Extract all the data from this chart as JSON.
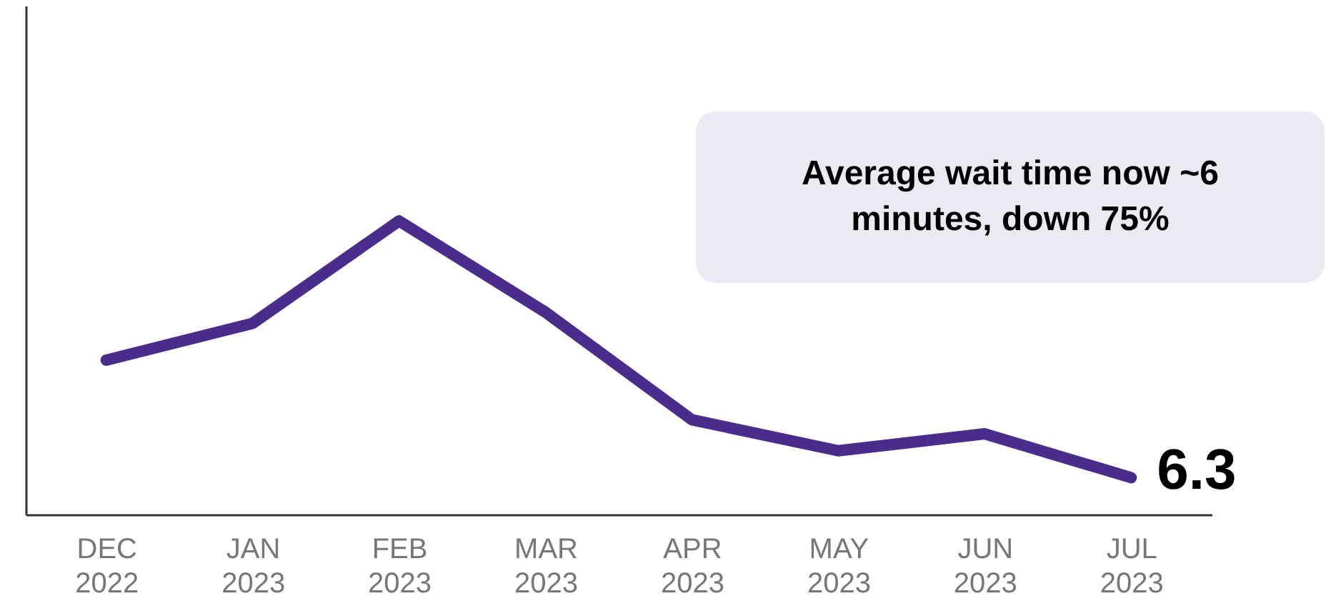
{
  "chart_data": {
    "type": "line",
    "categories": [
      "DEC 2022",
      "JAN 2023",
      "FEB 2023",
      "MAR 2023",
      "APR 2023",
      "MAY 2023",
      "JUN 2023",
      "JUL 2023"
    ],
    "series": [
      {
        "color": "#4a2c8c",
        "values": [
          26.4,
          32.7,
          50.2,
          34.6,
          16.2,
          10.9,
          13.8,
          6.3
        ],
        "value_labels": [
          null,
          null,
          null,
          null,
          null,
          null,
          null,
          "6.3"
        ]
      }
    ],
    "ylim": [
      0,
      87
    ],
    "tick_labels": "x",
    "annotations": [
      "Average wait time now ~6 minutes, down 75%"
    ],
    "grid": false,
    "legend": false,
    "marker": "none",
    "line_style": "solid"
  }
}
